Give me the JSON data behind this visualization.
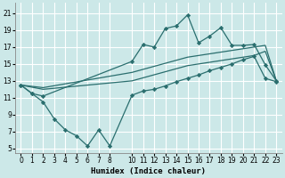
{
  "xlabel": "Humidex (Indice chaleur)",
  "background_color": "#cce8e8",
  "grid_color": "#ffffff",
  "line_color": "#2a6e6e",
  "xlim": [
    -0.5,
    23.5
  ],
  "ylim": [
    4.5,
    22.2
  ],
  "xticks": [
    0,
    1,
    2,
    3,
    4,
    5,
    6,
    7,
    8,
    10,
    11,
    12,
    13,
    14,
    15,
    16,
    17,
    18,
    19,
    20,
    21,
    22,
    23
  ],
  "yticks": [
    5,
    7,
    9,
    11,
    13,
    15,
    17,
    19,
    21
  ],
  "line_top_x": [
    0,
    1,
    2,
    10,
    11,
    12,
    13,
    14,
    15,
    16,
    17,
    18,
    19,
    20,
    21,
    22,
    23
  ],
  "line_top_y": [
    12.5,
    11.5,
    11.2,
    15.3,
    17.3,
    17.0,
    19.2,
    19.5,
    20.8,
    17.5,
    18.3,
    19.3,
    17.2,
    17.2,
    17.3,
    14.9,
    13.0
  ],
  "line_bot_x": [
    0,
    1,
    2,
    3,
    4,
    5,
    6,
    7,
    8,
    10,
    11,
    12,
    13,
    14,
    15,
    16,
    17,
    18,
    19,
    20,
    21,
    22,
    23
  ],
  "line_bot_y": [
    12.5,
    11.5,
    10.5,
    8.5,
    7.2,
    6.5,
    5.3,
    7.2,
    5.3,
    11.3,
    11.8,
    12.0,
    12.4,
    12.9,
    13.3,
    13.7,
    14.2,
    14.6,
    15.0,
    15.5,
    15.9,
    13.3,
    12.9
  ],
  "line_mid1_x": [
    0,
    2,
    10,
    15,
    21,
    22,
    23
  ],
  "line_mid1_y": [
    12.5,
    12.2,
    14.0,
    15.8,
    17.0,
    17.2,
    13.0
  ],
  "line_mid2_x": [
    0,
    2,
    10,
    15,
    21,
    22,
    23
  ],
  "line_mid2_y": [
    12.5,
    12.0,
    13.0,
    14.8,
    16.0,
    16.5,
    13.0
  ]
}
